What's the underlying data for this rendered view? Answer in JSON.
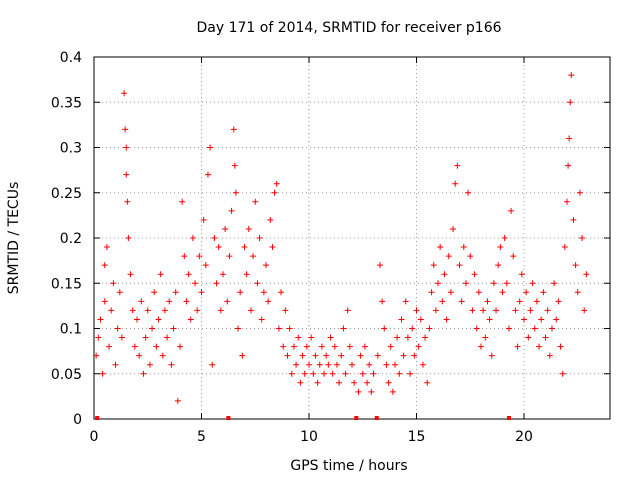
{
  "chart_data": {
    "type": "scatter",
    "title": "Day 171 of 2014, SRMTID for receiver p166",
    "xlabel": "GPS time / hours",
    "ylabel": "SRMTID / TECUs",
    "xlim": [
      0,
      24
    ],
    "ylim": [
      0,
      0.4
    ],
    "xticks": [
      0,
      5,
      10,
      15,
      20
    ],
    "xtick_labels": [
      "0",
      "5",
      "10",
      "15",
      "20"
    ],
    "yticks": [
      0,
      0.05,
      0.1,
      0.15,
      0.2,
      0.25,
      0.3,
      0.35,
      0.4
    ],
    "ytick_labels": [
      "0",
      "0.05",
      "0.1",
      "0.15",
      "0.2",
      "0.25",
      "0.3",
      "0.35",
      "0.4"
    ],
    "grid": true,
    "marker": "+",
    "color": "#ff0000",
    "zero_markers_x": [
      0.15,
      6.25,
      12.2,
      13.15,
      19.3
    ],
    "series": [
      {
        "name": "SRMTID",
        "points": [
          [
            0.1,
            0.07
          ],
          [
            0.2,
            0.09
          ],
          [
            0.3,
            0.11
          ],
          [
            0.4,
            0.05
          ],
          [
            0.5,
            0.13
          ],
          [
            0.5,
            0.17
          ],
          [
            0.6,
            0.19
          ],
          [
            0.7,
            0.08
          ],
          [
            0.8,
            0.12
          ],
          [
            0.9,
            0.15
          ],
          [
            1.0,
            0.06
          ],
          [
            1.1,
            0.1
          ],
          [
            1.2,
            0.14
          ],
          [
            1.3,
            0.09
          ],
          [
            1.4,
            0.36
          ],
          [
            1.45,
            0.32
          ],
          [
            1.5,
            0.3
          ],
          [
            1.5,
            0.27
          ],
          [
            1.55,
            0.24
          ],
          [
            1.6,
            0.2
          ],
          [
            1.7,
            0.16
          ],
          [
            1.8,
            0.12
          ],
          [
            1.9,
            0.08
          ],
          [
            2.0,
            0.11
          ],
          [
            2.1,
            0.07
          ],
          [
            2.2,
            0.13
          ],
          [
            2.3,
            0.05
          ],
          [
            2.4,
            0.09
          ],
          [
            2.5,
            0.12
          ],
          [
            2.6,
            0.06
          ],
          [
            2.7,
            0.1
          ],
          [
            2.8,
            0.14
          ],
          [
            2.9,
            0.08
          ],
          [
            3.0,
            0.11
          ],
          [
            3.1,
            0.16
          ],
          [
            3.2,
            0.07
          ],
          [
            3.3,
            0.12
          ],
          [
            3.4,
            0.09
          ],
          [
            3.5,
            0.13
          ],
          [
            3.6,
            0.06
          ],
          [
            3.7,
            0.1
          ],
          [
            3.8,
            0.14
          ],
          [
            3.9,
            0.02
          ],
          [
            4.0,
            0.08
          ],
          [
            4.1,
            0.24
          ],
          [
            4.2,
            0.18
          ],
          [
            4.3,
            0.13
          ],
          [
            4.4,
            0.16
          ],
          [
            4.5,
            0.11
          ],
          [
            4.6,
            0.2
          ],
          [
            4.7,
            0.15
          ],
          [
            4.8,
            0.12
          ],
          [
            4.9,
            0.18
          ],
          [
            5.0,
            0.14
          ],
          [
            5.1,
            0.22
          ],
          [
            5.2,
            0.17
          ],
          [
            5.3,
            0.27
          ],
          [
            5.4,
            0.3
          ],
          [
            5.5,
            0.06
          ],
          [
            5.6,
            0.2
          ],
          [
            5.7,
            0.15
          ],
          [
            5.8,
            0.19
          ],
          [
            5.9,
            0.12
          ],
          [
            6.0,
            0.16
          ],
          [
            6.1,
            0.21
          ],
          [
            6.2,
            0.13
          ],
          [
            6.3,
            0.18
          ],
          [
            6.4,
            0.23
          ],
          [
            6.5,
            0.32
          ],
          [
            6.55,
            0.28
          ],
          [
            6.6,
            0.25
          ],
          [
            6.7,
            0.1
          ],
          [
            6.8,
            0.14
          ],
          [
            6.9,
            0.07
          ],
          [
            7.0,
            0.19
          ],
          [
            7.1,
            0.16
          ],
          [
            7.2,
            0.21
          ],
          [
            7.3,
            0.12
          ],
          [
            7.4,
            0.18
          ],
          [
            7.5,
            0.24
          ],
          [
            7.6,
            0.15
          ],
          [
            7.7,
            0.2
          ],
          [
            7.8,
            0.11
          ],
          [
            7.9,
            0.14
          ],
          [
            8.0,
            0.17
          ],
          [
            8.1,
            0.13
          ],
          [
            8.2,
            0.22
          ],
          [
            8.3,
            0.19
          ],
          [
            8.4,
            0.25
          ],
          [
            8.5,
            0.26
          ],
          [
            8.6,
            0.1
          ],
          [
            8.7,
            0.14
          ],
          [
            8.8,
            0.08
          ],
          [
            8.9,
            0.12
          ],
          [
            9.0,
            0.07
          ],
          [
            9.1,
            0.1
          ],
          [
            9.2,
            0.05
          ],
          [
            9.3,
            0.08
          ],
          [
            9.4,
            0.06
          ],
          [
            9.5,
            0.09
          ],
          [
            9.6,
            0.04
          ],
          [
            9.7,
            0.07
          ],
          [
            9.8,
            0.05
          ],
          [
            9.9,
            0.08
          ],
          [
            10.0,
            0.06
          ],
          [
            10.1,
            0.09
          ],
          [
            10.2,
            0.05
          ],
          [
            10.3,
            0.07
          ],
          [
            10.4,
            0.04
          ],
          [
            10.5,
            0.06
          ],
          [
            10.6,
            0.08
          ],
          [
            10.7,
            0.05
          ],
          [
            10.8,
            0.07
          ],
          [
            10.9,
            0.06
          ],
          [
            11.0,
            0.09
          ],
          [
            11.1,
            0.05
          ],
          [
            11.2,
            0.08
          ],
          [
            11.3,
            0.06
          ],
          [
            11.4,
            0.04
          ],
          [
            11.5,
            0.07
          ],
          [
            11.6,
            0.1
          ],
          [
            11.7,
            0.05
          ],
          [
            11.8,
            0.12
          ],
          [
            11.9,
            0.08
          ],
          [
            12.0,
            0.06
          ],
          [
            12.1,
            0.04
          ],
          [
            12.3,
            0.03
          ],
          [
            12.4,
            0.07
          ],
          [
            12.5,
            0.05
          ],
          [
            12.6,
            0.08
          ],
          [
            12.7,
            0.04
          ],
          [
            12.8,
            0.06
          ],
          [
            12.9,
            0.03
          ],
          [
            13.0,
            0.05
          ],
          [
            13.2,
            0.07
          ],
          [
            13.3,
            0.17
          ],
          [
            13.4,
            0.13
          ],
          [
            13.5,
            0.1
          ],
          [
            13.6,
            0.06
          ],
          [
            13.7,
            0.04
          ],
          [
            13.8,
            0.08
          ],
          [
            13.9,
            0.03
          ],
          [
            14.0,
            0.06
          ],
          [
            14.1,
            0.09
          ],
          [
            14.2,
            0.05
          ],
          [
            14.3,
            0.11
          ],
          [
            14.4,
            0.07
          ],
          [
            14.5,
            0.13
          ],
          [
            14.6,
            0.09
          ],
          [
            14.7,
            0.05
          ],
          [
            14.8,
            0.1
          ],
          [
            14.9,
            0.07
          ],
          [
            15.0,
            0.12
          ],
          [
            15.1,
            0.08
          ],
          [
            15.2,
            0.11
          ],
          [
            15.3,
            0.06
          ],
          [
            15.4,
            0.09
          ],
          [
            15.5,
            0.04
          ],
          [
            15.6,
            0.1
          ],
          [
            15.7,
            0.14
          ],
          [
            15.8,
            0.17
          ],
          [
            15.9,
            0.12
          ],
          [
            16.0,
            0.15
          ],
          [
            16.1,
            0.19
          ],
          [
            16.2,
            0.13
          ],
          [
            16.3,
            0.16
          ],
          [
            16.4,
            0.11
          ],
          [
            16.5,
            0.18
          ],
          [
            16.6,
            0.14
          ],
          [
            16.7,
            0.21
          ],
          [
            16.8,
            0.26
          ],
          [
            16.9,
            0.28
          ],
          [
            17.0,
            0.17
          ],
          [
            17.1,
            0.13
          ],
          [
            17.2,
            0.19
          ],
          [
            17.3,
            0.15
          ],
          [
            17.4,
            0.25
          ],
          [
            17.5,
            0.18
          ],
          [
            17.6,
            0.12
          ],
          [
            17.7,
            0.16
          ],
          [
            17.8,
            0.1
          ],
          [
            17.9,
            0.14
          ],
          [
            18.0,
            0.08
          ],
          [
            18.1,
            0.12
          ],
          [
            18.2,
            0.09
          ],
          [
            18.3,
            0.13
          ],
          [
            18.4,
            0.11
          ],
          [
            18.5,
            0.07
          ],
          [
            18.6,
            0.15
          ],
          [
            18.7,
            0.12
          ],
          [
            18.8,
            0.17
          ],
          [
            18.9,
            0.19
          ],
          [
            19.0,
            0.14
          ],
          [
            19.1,
            0.2
          ],
          [
            19.2,
            0.15
          ],
          [
            19.3,
            0.1
          ],
          [
            19.4,
            0.23
          ],
          [
            19.5,
            0.18
          ],
          [
            19.6,
            0.12
          ],
          [
            19.7,
            0.08
          ],
          [
            19.8,
            0.13
          ],
          [
            19.9,
            0.16
          ],
          [
            20.0,
            0.11
          ],
          [
            20.1,
            0.14
          ],
          [
            20.2,
            0.09
          ],
          [
            20.3,
            0.12
          ],
          [
            20.4,
            0.15
          ],
          [
            20.5,
            0.1
          ],
          [
            20.6,
            0.13
          ],
          [
            20.7,
            0.08
          ],
          [
            20.8,
            0.11
          ],
          [
            20.9,
            0.14
          ],
          [
            21.0,
            0.09
          ],
          [
            21.1,
            0.12
          ],
          [
            21.2,
            0.07
          ],
          [
            21.3,
            0.1
          ],
          [
            21.4,
            0.15
          ],
          [
            21.5,
            0.11
          ],
          [
            21.6,
            0.13
          ],
          [
            21.7,
            0.08
          ],
          [
            21.8,
            0.05
          ],
          [
            21.9,
            0.19
          ],
          [
            22.0,
            0.24
          ],
          [
            22.05,
            0.28
          ],
          [
            22.1,
            0.31
          ],
          [
            22.15,
            0.35
          ],
          [
            22.2,
            0.38
          ],
          [
            22.3,
            0.22
          ],
          [
            22.4,
            0.17
          ],
          [
            22.5,
            0.14
          ],
          [
            22.6,
            0.25
          ],
          [
            22.7,
            0.2
          ],
          [
            22.8,
            0.12
          ],
          [
            22.9,
            0.16
          ]
        ]
      }
    ]
  }
}
